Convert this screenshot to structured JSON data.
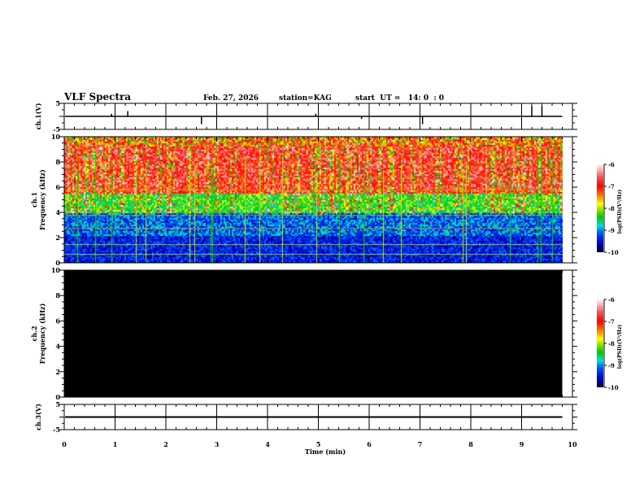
{
  "header": {
    "title": "VLF Spectra",
    "date": "Feb. 27, 2026",
    "station": "station=KAG",
    "start": "start  UT =   14: 0  : 0"
  },
  "chart_data": {
    "type": "heatmap",
    "title": "VLF Spectra",
    "xlabel": "Time  (min)",
    "xlim": [
      0,
      10
    ],
    "x_ticks": [
      "0",
      "1",
      "2",
      "3",
      "4",
      "5",
      "6",
      "7",
      "8",
      "9",
      "10"
    ],
    "data_end_min": 9.8,
    "panels": [
      {
        "name": "ch1-waveform",
        "ylabel": "ch.1(V)",
        "ylim": [
          -5,
          5
        ],
        "y_ticks": [
          "5",
          "-5"
        ],
        "baseline": 0,
        "spikes": [
          {
            "t": 0.93,
            "v": 1
          },
          {
            "t": 1.25,
            "v": 2
          },
          {
            "t": 2.7,
            "v": -3
          },
          {
            "t": 4.95,
            "v": 1
          },
          {
            "t": 5.85,
            "v": -1
          },
          {
            "t": 7.05,
            "v": -3
          },
          {
            "t": 9.2,
            "v": 4
          },
          {
            "t": 9.4,
            "v": 4
          }
        ]
      },
      {
        "name": "ch1-spectrogram",
        "ylabel": "ch.1\nFrequency  (kHz)",
        "ylim": [
          0,
          10
        ],
        "y_ticks": [
          "0",
          "2",
          "4",
          "6",
          "8",
          "10"
        ],
        "colorbar": {
          "label": "log(PSD)(V²/Hz)",
          "range": [
            -10,
            -6
          ],
          "ticks": [
            "-6",
            "-7",
            "-8",
            "-9",
            "-10"
          ]
        },
        "description_levels": {
          "0-4kHz": -9.5,
          "4-6kHz": -8,
          "6-10kHz": -6.8
        }
      },
      {
        "name": "ch2-spectrogram",
        "ylabel": "ch.2\nFrequency  (kHz)",
        "ylim": [
          0,
          10
        ],
        "y_ticks": [
          "0",
          "2",
          "4",
          "6",
          "8",
          "10"
        ],
        "colorbar": {
          "label": "log(PSD)(V²/Hz)",
          "range": [
            -10,
            -6
          ],
          "ticks": [
            "-6",
            "-7",
            "-8",
            "-9",
            "-10"
          ]
        },
        "fill": "no data"
      },
      {
        "name": "ch3-waveform",
        "ylabel": "ch.3(V)",
        "ylim": [
          -5,
          5
        ],
        "y_ticks": [
          "5",
          "-5"
        ],
        "baseline": 0
      }
    ]
  }
}
